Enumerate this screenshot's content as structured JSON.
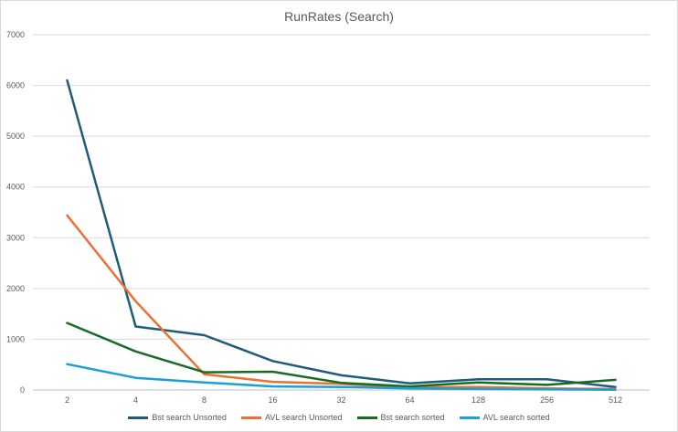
{
  "chart_data": {
    "type": "line",
    "title": "RunRates (Search)",
    "xlabel": "",
    "ylabel": "",
    "categories": [
      "2",
      "4",
      "8",
      "16",
      "32",
      "64",
      "128",
      "256",
      "512"
    ],
    "ylim": [
      0,
      7000
    ],
    "yticks": [
      "0",
      "1000",
      "2000",
      "3000",
      "4000",
      "5000",
      "6000",
      "7000"
    ],
    "grid": true,
    "legend_position": "bottom",
    "series": [
      {
        "name": "Bst search Unsorted",
        "color": "#1f5c7a",
        "values": [
          6100,
          1250,
          1080,
          570,
          290,
          130,
          210,
          210,
          60
        ]
      },
      {
        "name": "AVL search Unsorted",
        "color": "#e97132",
        "values": [
          3440,
          1750,
          310,
          160,
          120,
          50,
          60,
          30,
          20
        ]
      },
      {
        "name": "Bst search sorted",
        "color": "#196b24",
        "values": [
          1320,
          760,
          350,
          360,
          140,
          70,
          150,
          100,
          200
        ]
      },
      {
        "name": "AVL search sorted",
        "color": "#1b9fd6",
        "values": [
          510,
          240,
          150,
          70,
          60,
          30,
          20,
          10,
          5
        ]
      }
    ]
  }
}
